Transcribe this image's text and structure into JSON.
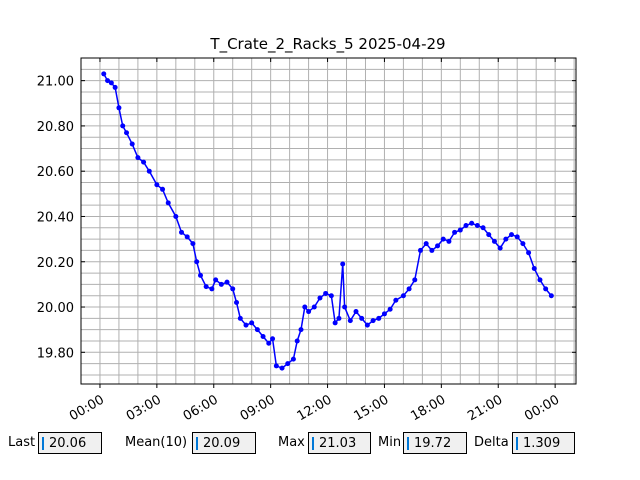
{
  "chart_data": {
    "type": "line",
    "title": "T_Crate_2_Racks_5 2025-04-29",
    "x": [
      0.2,
      0.4,
      0.6,
      0.8,
      1.0,
      1.2,
      1.4,
      1.7,
      2.0,
      2.3,
      2.6,
      3.0,
      3.3,
      3.6,
      4.0,
      4.3,
      4.6,
      4.9,
      5.1,
      5.3,
      5.6,
      5.9,
      6.1,
      6.4,
      6.7,
      7.0,
      7.2,
      7.4,
      7.7,
      8.0,
      8.3,
      8.6,
      8.9,
      9.1,
      9.3,
      9.6,
      9.9,
      10.2,
      10.4,
      10.6,
      10.8,
      11.0,
      11.3,
      11.6,
      11.9,
      12.2,
      12.4,
      12.6,
      12.8,
      12.9,
      13.2,
      13.5,
      13.8,
      14.1,
      14.4,
      14.7,
      15.0,
      15.3,
      15.6,
      16.0,
      16.3,
      16.6,
      16.9,
      17.2,
      17.5,
      17.8,
      18.1,
      18.4,
      18.7,
      19.0,
      19.3,
      19.6,
      19.9,
      20.2,
      20.5,
      20.8,
      21.1,
      21.4,
      21.7,
      22.0,
      22.3,
      22.6,
      22.9,
      23.2,
      23.5,
      23.8
    ],
    "series": [
      {
        "color": "#0000ff",
        "values": [
          21.03,
          21.0,
          20.99,
          20.97,
          20.88,
          20.8,
          20.77,
          20.72,
          20.66,
          20.64,
          20.6,
          20.54,
          20.52,
          20.46,
          20.4,
          20.33,
          20.31,
          20.28,
          20.2,
          20.14,
          20.09,
          20.08,
          20.12,
          20.1,
          20.11,
          20.08,
          20.02,
          19.95,
          19.92,
          19.93,
          19.9,
          19.87,
          19.84,
          19.86,
          19.74,
          19.73,
          19.75,
          19.77,
          19.85,
          19.9,
          20.0,
          19.98,
          20.0,
          20.04,
          20.06,
          20.05,
          19.93,
          19.95,
          20.19,
          20.0,
          19.94,
          19.98,
          19.95,
          19.92,
          19.94,
          19.95,
          19.97,
          19.99,
          20.03,
          20.05,
          20.08,
          20.12,
          20.25,
          20.28,
          20.25,
          20.27,
          20.3,
          20.29,
          20.33,
          20.34,
          20.36,
          20.37,
          20.36,
          20.35,
          20.32,
          20.29,
          20.26,
          20.3,
          20.32,
          20.31,
          20.28,
          20.24,
          20.17,
          20.12,
          20.08,
          20.05
        ]
      }
    ],
    "xlim": [
      -1.0,
      25.1
    ],
    "ylim": [
      19.66,
      21.1
    ],
    "xticks": [
      {
        "value": 0,
        "label": "00:00"
      },
      {
        "value": 3,
        "label": "03:00"
      },
      {
        "value": 6,
        "label": "06:00"
      },
      {
        "value": 9,
        "label": "09:00"
      },
      {
        "value": 12,
        "label": "12:00"
      },
      {
        "value": 15,
        "label": "15:00"
      },
      {
        "value": 18,
        "label": "18:00"
      },
      {
        "value": 21,
        "label": "21:00"
      },
      {
        "value": 24,
        "label": "00:00"
      }
    ],
    "yticks": [
      {
        "value": 19.8,
        "label": "19.80"
      },
      {
        "value": 20.0,
        "label": "20.00"
      },
      {
        "value": 20.2,
        "label": "20.20"
      },
      {
        "value": 20.4,
        "label": "20.40"
      },
      {
        "value": 20.6,
        "label": "20.60"
      },
      {
        "value": 20.8,
        "label": "20.80"
      },
      {
        "value": 21.0,
        "label": "21.00"
      }
    ],
    "xminorticks": [
      -1,
      0,
      1,
      2,
      3,
      4,
      5,
      6,
      7,
      8,
      9,
      10,
      11,
      12,
      13,
      14,
      15,
      16,
      17,
      18,
      19,
      20,
      21,
      22,
      23,
      24,
      25
    ],
    "yminorticks": [
      19.7,
      19.75,
      19.8,
      19.85,
      19.9,
      19.95,
      20.0,
      20.05,
      20.1,
      20.15,
      20.2,
      20.25,
      20.3,
      20.35,
      20.4,
      20.45,
      20.5,
      20.55,
      20.6,
      20.65,
      20.7,
      20.75,
      20.8,
      20.85,
      20.9,
      20.95,
      21.0,
      21.05
    ],
    "grid": true
  },
  "footer": [
    {
      "label": "Last",
      "value": 20.06
    },
    {
      "label": "Mean(10)",
      "value": 20.09
    },
    {
      "label": "Max",
      "value": 21.03
    },
    {
      "label": "Min",
      "value": 19.72
    },
    {
      "label": "Delta",
      "value": 1.309
    }
  ]
}
